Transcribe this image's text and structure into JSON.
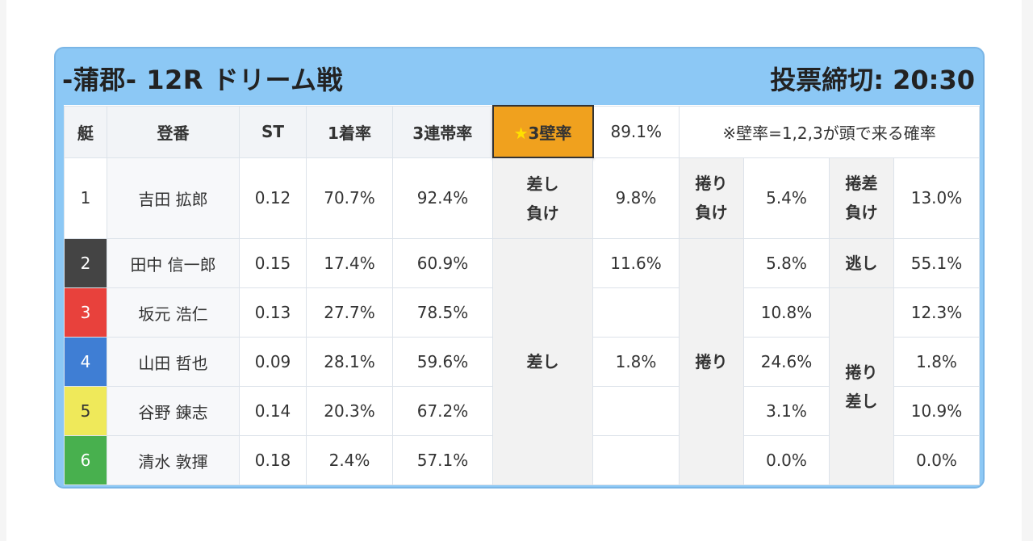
{
  "header": {
    "race_title": "-蒲郡- 12R ドリーム戦",
    "deadline": "投票締切: 20:30"
  },
  "columns": {
    "boat": "艇",
    "racer": "登番",
    "st": "ST",
    "win_rate": "1着率",
    "top3_rate": "3連帯率",
    "wall_label": "3壁率",
    "wall_value": "89.1%",
    "wall_note": "※壁率=1,2,3が頭で来る確率"
  },
  "colors": {
    "card": "#8cc8f5",
    "star_cell": "#f0a11e",
    "boat_1": "#ffffff",
    "boat_2": "#444444",
    "boat_3": "#e8413c",
    "boat_4": "#3f7ed4",
    "boat_5": "#efe95a",
    "boat_6": "#48b04e"
  },
  "star_icon": "star-icon",
  "rows": [
    {
      "boat": "1",
      "racer": "吉田 拡郎",
      "st": "0.12",
      "win": "70.7%",
      "top3": "92.4%"
    },
    {
      "boat": "2",
      "racer": "田中 信一郎",
      "st": "0.15",
      "win": "17.4%",
      "top3": "60.9%"
    },
    {
      "boat": "3",
      "racer": "坂元 浩仁",
      "st": "0.13",
      "win": "27.7%",
      "top3": "78.5%"
    },
    {
      "boat": "4",
      "racer": "山田 哲也",
      "st": "0.09",
      "win": "28.1%",
      "top3": "59.6%"
    },
    {
      "boat": "5",
      "racer": "谷野 錬志",
      "st": "0.14",
      "win": "20.3%",
      "top3": "67.2%"
    },
    {
      "boat": "6",
      "racer": "清水 敦揮",
      "st": "0.18",
      "win": "2.4%",
      "top3": "57.1%"
    }
  ],
  "patterns": {
    "sashi_make": {
      "line1": "差し",
      "line2": "負け",
      "value": "9.8%"
    },
    "makuri_make": {
      "line1": "捲り",
      "line2": "負け",
      "value": "5.4%"
    },
    "makurizashi_make": {
      "line1": "捲差",
      "line2": "負け",
      "value": "13.0%"
    },
    "sashi": {
      "label": "差し",
      "values": [
        "11.6%",
        "",
        "1.8%",
        "",
        ""
      ]
    },
    "makuri": {
      "label": "捲り",
      "values": [
        "5.8%",
        "10.8%",
        "24.6%",
        "3.1%",
        "0.0%"
      ]
    },
    "nige": {
      "label": "逃し",
      "value": "55.1%"
    },
    "makurizashi": {
      "line1": "捲り",
      "line2": "差し",
      "values": [
        "12.3%",
        "1.8%",
        "10.9%",
        "0.0%"
      ]
    }
  }
}
